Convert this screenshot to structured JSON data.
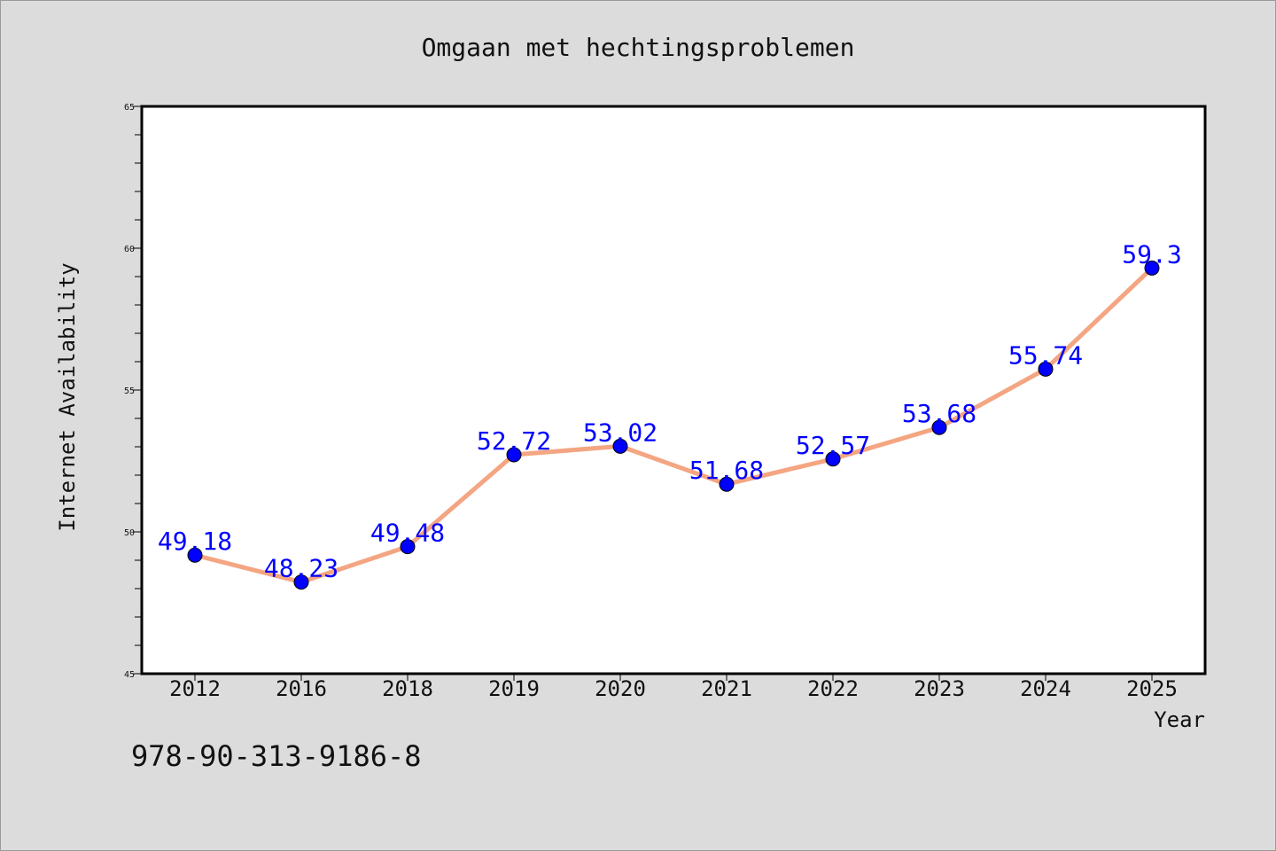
{
  "chart_data": {
    "type": "line",
    "title": "Omgaan met hechtingsproblemen",
    "xlabel": "Year",
    "ylabel": "Internet Availability",
    "categories": [
      "2012",
      "2016",
      "2018",
      "2019",
      "2020",
      "2021",
      "2022",
      "2023",
      "2024",
      "2025"
    ],
    "series": [
      {
        "values": [
          49.18,
          48.23,
          49.48,
          52.72,
          53.02,
          51.68,
          52.57,
          53.68,
          55.74,
          59.3
        ],
        "labels": [
          "49.18",
          "48.23",
          "49.48",
          "52.72",
          "53.02",
          "51.68",
          "52.57",
          "53.68",
          "55.74",
          "59.3"
        ],
        "line_color": "#f4a582",
        "marker_color": "#0000ff"
      }
    ],
    "ylim": [
      45,
      65
    ],
    "yticks": [
      "45",
      "50",
      "55",
      "60",
      "65"
    ],
    "grid": false,
    "legend": "none"
  },
  "footer": {
    "isbn": "978-90-313-9186-8"
  },
  "colors": {
    "background": "#dcdcdc",
    "plot_background": "#ffffff",
    "axis": "#000000"
  }
}
